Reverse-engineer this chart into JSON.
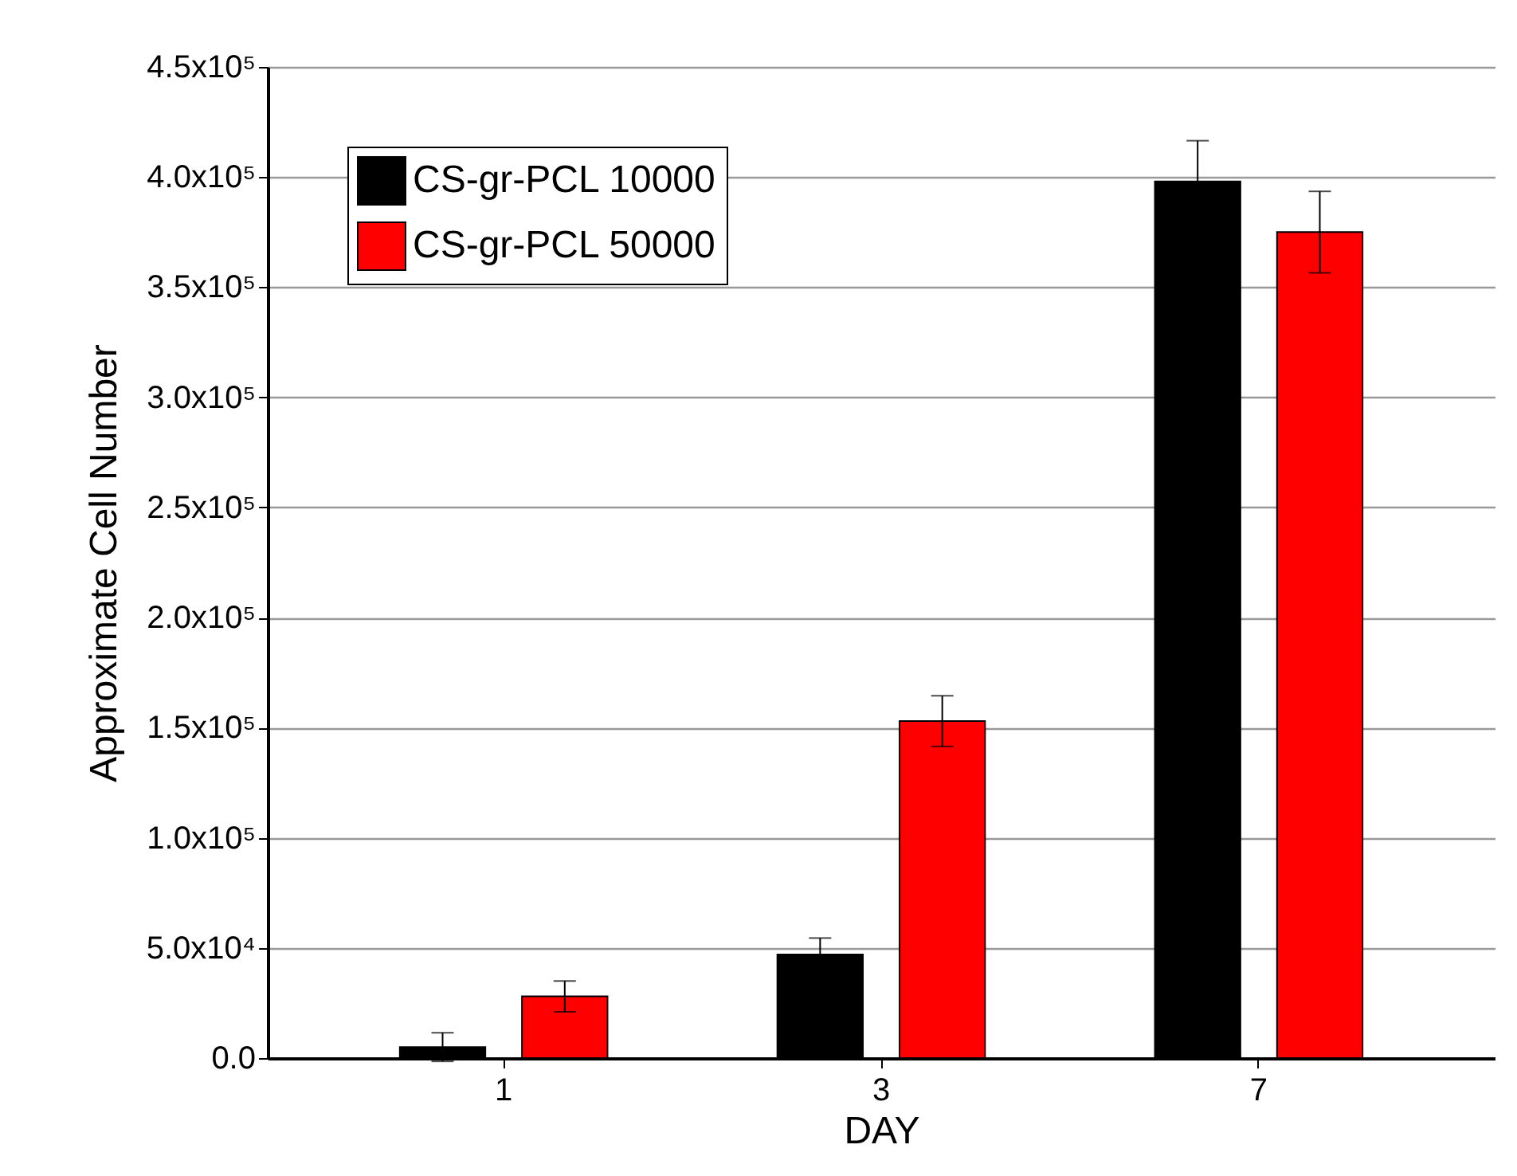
{
  "chart_data": {
    "type": "bar",
    "xlabel": "DAY",
    "ylabel": "Approximate Cell Number",
    "categories": [
      "1",
      "3",
      "7"
    ],
    "series": [
      {
        "name": "CS-gr-PCL 10000",
        "color": "#000000",
        "values": [
          5000,
          47000,
          398000
        ],
        "errors": [
          6500,
          7500,
          18500
        ]
      },
      {
        "name": "CS-gr-PCL 50000",
        "color": "#ff0000",
        "values": [
          28000,
          153000,
          375000
        ],
        "errors": [
          7000,
          11500,
          18500
        ]
      }
    ],
    "ylim": [
      0,
      450000
    ],
    "yticks": [
      {
        "value": 0,
        "label": "0.0"
      },
      {
        "value": 50000,
        "label": "5.0x10⁴"
      },
      {
        "value": 100000,
        "label": "1.0x10⁵"
      },
      {
        "value": 150000,
        "label": "1.5x10⁵"
      },
      {
        "value": 200000,
        "label": "2.0x10⁵"
      },
      {
        "value": 250000,
        "label": "2.5x10⁵"
      },
      {
        "value": 300000,
        "label": "3.0x10⁵"
      },
      {
        "value": 350000,
        "label": "3.5x10⁵"
      },
      {
        "value": 400000,
        "label": "4.0x10⁵"
      },
      {
        "value": 450000,
        "label": "4.5x10⁵"
      }
    ],
    "grid": "y",
    "legend": "top left"
  }
}
